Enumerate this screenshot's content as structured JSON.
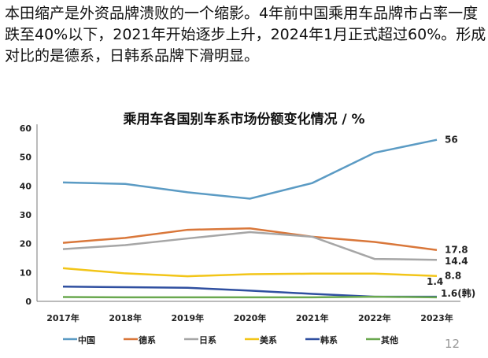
{
  "intro_text": "本田缩产是外资品牌溃败的一个缩影。4年前中国乘用车品牌市占率一度跌至40%以下，2021年开始逐步上升，2024年1月正式超过60%。形成对比的是德系，日韩系品牌下滑明显。",
  "page_number": "12",
  "chart_data": {
    "type": "line",
    "title": "乘用车各国别车系市场份额变化情况 / %",
    "categories": [
      "2017年",
      "2018年",
      "2019年",
      "2020年",
      "2021年",
      "2022年",
      "2023年"
    ],
    "ylim": [
      0,
      60
    ],
    "yticks": [
      0,
      10,
      20,
      30,
      40,
      50,
      60
    ],
    "grid": false,
    "legend_position": "bottom",
    "series": [
      {
        "name": "中国",
        "color": "#5b9bc4",
        "values": [
          41.2,
          40.7,
          37.8,
          35.6,
          41.0,
          51.5,
          56
        ],
        "end_label": "56"
      },
      {
        "name": "德系",
        "color": "#d9773a",
        "values": [
          20.3,
          22.0,
          24.8,
          25.3,
          22.4,
          20.6,
          17.8
        ],
        "end_label": "17.8"
      },
      {
        "name": "日系",
        "color": "#a6a6a6",
        "values": [
          18.1,
          19.5,
          21.8,
          24.0,
          22.4,
          14.7,
          14.4
        ],
        "end_label": "14.4"
      },
      {
        "name": "美系",
        "color": "#f2c518",
        "values": [
          11.5,
          9.7,
          8.7,
          9.4,
          9.6,
          9.6,
          8.8
        ],
        "end_label": "8.8"
      },
      {
        "name": "韩系",
        "color": "#2f4fa0",
        "values": [
          5.1,
          4.9,
          4.7,
          3.7,
          2.6,
          1.6,
          1.6
        ],
        "end_label": "1.6(韩)"
      },
      {
        "name": "其他",
        "color": "#6aa84f",
        "values": [
          1.5,
          1.4,
          1.4,
          1.4,
          1.4,
          1.6,
          1.4
        ],
        "end_label": "1.4"
      }
    ]
  }
}
